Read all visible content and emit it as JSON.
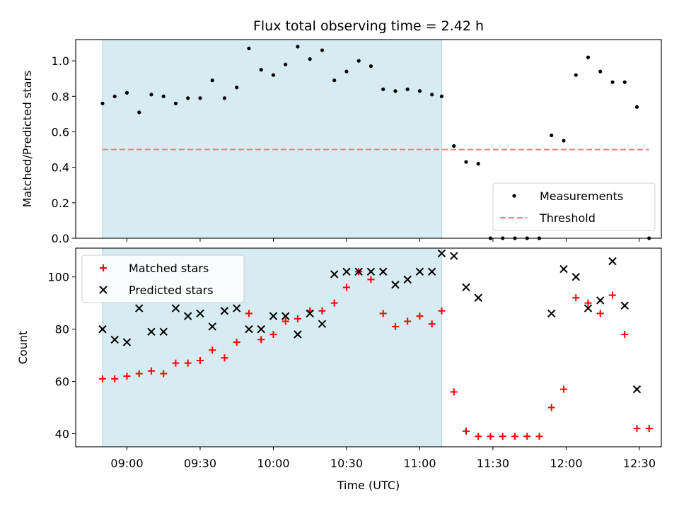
{
  "chart_data": {
    "type": "scatter",
    "title": "Flux total observing time = 2.42 h",
    "xlabel": "Time (UTC)",
    "x_ticks": [
      "09:00",
      "09:30",
      "10:00",
      "10:30",
      "11:00",
      "11:30",
      "12:00",
      "12:30"
    ],
    "x_range": [
      "08:39",
      "12:39"
    ],
    "shaded_interval": [
      "08:50",
      "11:09"
    ],
    "colors": {
      "shade": "#add8e6",
      "measurements": "#000000",
      "threshold": "#f08080",
      "matched": "#ff0000",
      "predicted": "#000000"
    },
    "panels": [
      {
        "ylabel": "Matched/Predicted stars",
        "ylim": [
          0,
          1.12
        ],
        "y_ticks": [
          0.0,
          0.2,
          0.4,
          0.6,
          0.8,
          1.0
        ],
        "y_tick_labels": [
          "0.0",
          "0.2",
          "0.4",
          "0.6",
          "0.8",
          "1.0"
        ],
        "legend": {
          "placement": "lower right",
          "entries": [
            "Measurements",
            "Threshold"
          ]
        },
        "series": [
          {
            "name": "Measurements",
            "marker": "dot",
            "points": [
              [
                "08:50",
                0.76
              ],
              [
                "08:55",
                0.8
              ],
              [
                "09:00",
                0.82
              ],
              [
                "09:05",
                0.71
              ],
              [
                "09:10",
                0.81
              ],
              [
                "09:15",
                0.8
              ],
              [
                "09:20",
                0.76
              ],
              [
                "09:25",
                0.79
              ],
              [
                "09:30",
                0.79
              ],
              [
                "09:35",
                0.89
              ],
              [
                "09:40",
                0.79
              ],
              [
                "09:45",
                0.85
              ],
              [
                "09:50",
                1.07
              ],
              [
                "09:55",
                0.95
              ],
              [
                "10:00",
                0.92
              ],
              [
                "10:05",
                0.98
              ],
              [
                "10:10",
                1.08
              ],
              [
                "10:15",
                1.01
              ],
              [
                "10:20",
                1.06
              ],
              [
                "10:25",
                0.89
              ],
              [
                "10:30",
                0.94
              ],
              [
                "10:35",
                1.0
              ],
              [
                "10:40",
                0.97
              ],
              [
                "10:45",
                0.84
              ],
              [
                "10:50",
                0.83
              ],
              [
                "10:55",
                0.84
              ],
              [
                "11:00",
                0.83
              ],
              [
                "11:05",
                0.81
              ],
              [
                "11:09",
                0.8
              ],
              [
                "11:14",
                0.52
              ],
              [
                "11:19",
                0.43
              ],
              [
                "11:24",
                0.42
              ],
              [
                "11:29",
                0.0
              ],
              [
                "11:34",
                0.0
              ],
              [
                "11:39",
                0.0
              ],
              [
                "11:44",
                0.0
              ],
              [
                "11:49",
                0.0
              ],
              [
                "11:54",
                0.58
              ],
              [
                "11:59",
                0.55
              ],
              [
                "12:04",
                0.92
              ],
              [
                "12:09",
                1.02
              ],
              [
                "12:14",
                0.94
              ],
              [
                "12:19",
                0.88
              ],
              [
                "12:24",
                0.88
              ],
              [
                "12:29",
                0.74
              ],
              [
                "12:34",
                0.0
              ]
            ]
          },
          {
            "name": "Threshold",
            "marker": "dashed-line",
            "points": [
              [
                "08:50",
                0.5
              ],
              [
                "12:34",
                0.5
              ]
            ]
          }
        ]
      },
      {
        "ylabel": "Count",
        "ylim": [
          35,
          111
        ],
        "y_ticks": [
          40,
          60,
          80,
          100
        ],
        "y_tick_labels": [
          "40",
          "60",
          "80",
          "100"
        ],
        "legend": {
          "placement": "upper left",
          "entries": [
            "Matched stars",
            "Predicted stars"
          ]
        },
        "series": [
          {
            "name": "Matched stars",
            "marker": "plus",
            "points": [
              [
                "08:50",
                61
              ],
              [
                "08:55",
                61
              ],
              [
                "09:00",
                62
              ],
              [
                "09:05",
                63
              ],
              [
                "09:10",
                64
              ],
              [
                "09:15",
                63
              ],
              [
                "09:20",
                67
              ],
              [
                "09:25",
                67
              ],
              [
                "09:30",
                68
              ],
              [
                "09:35",
                72
              ],
              [
                "09:40",
                69
              ],
              [
                "09:45",
                75
              ],
              [
                "09:50",
                86
              ],
              [
                "09:55",
                76
              ],
              [
                "10:00",
                78
              ],
              [
                "10:05",
                83
              ],
              [
                "10:10",
                84
              ],
              [
                "10:15",
                87
              ],
              [
                "10:20",
                87
              ],
              [
                "10:25",
                90
              ],
              [
                "10:30",
                96
              ],
              [
                "10:35",
                102
              ],
              [
                "10:40",
                99
              ],
              [
                "10:45",
                86
              ],
              [
                "10:50",
                81
              ],
              [
                "10:55",
                83
              ],
              [
                "11:00",
                85
              ],
              [
                "11:05",
                82
              ],
              [
                "11:09",
                87
              ],
              [
                "11:14",
                56
              ],
              [
                "11:19",
                41
              ],
              [
                "11:24",
                39
              ],
              [
                "11:29",
                39
              ],
              [
                "11:34",
                39
              ],
              [
                "11:39",
                39
              ],
              [
                "11:44",
                39
              ],
              [
                "11:49",
                39
              ],
              [
                "11:54",
                50
              ],
              [
                "11:59",
                57
              ],
              [
                "12:04",
                92
              ],
              [
                "12:09",
                90
              ],
              [
                "12:14",
                86
              ],
              [
                "12:19",
                93
              ],
              [
                "12:24",
                78
              ],
              [
                "12:29",
                42
              ],
              [
                "12:34",
                42
              ]
            ]
          },
          {
            "name": "Predicted stars",
            "marker": "x",
            "points": [
              [
                "08:50",
                80
              ],
              [
                "08:55",
                76
              ],
              [
                "09:00",
                75
              ],
              [
                "09:05",
                88
              ],
              [
                "09:10",
                79
              ],
              [
                "09:15",
                79
              ],
              [
                "09:20",
                88
              ],
              [
                "09:25",
                85
              ],
              [
                "09:30",
                86
              ],
              [
                "09:35",
                81
              ],
              [
                "09:40",
                87
              ],
              [
                "09:45",
                88
              ],
              [
                "09:50",
                80
              ],
              [
                "09:55",
                80
              ],
              [
                "10:00",
                85
              ],
              [
                "10:05",
                85
              ],
              [
                "10:10",
                78
              ],
              [
                "10:15",
                86
              ],
              [
                "10:20",
                82
              ],
              [
                "10:25",
                101
              ],
              [
                "10:30",
                102
              ],
              [
                "10:35",
                102
              ],
              [
                "10:40",
                102
              ],
              [
                "10:45",
                102
              ],
              [
                "10:50",
                97
              ],
              [
                "10:55",
                99
              ],
              [
                "11:00",
                102
              ],
              [
                "11:05",
                102
              ],
              [
                "11:09",
                109
              ],
              [
                "11:14",
                108
              ],
              [
                "11:19",
                96
              ],
              [
                "11:24",
                92
              ],
              [
                "11:54",
                86
              ],
              [
                "11:59",
                103
              ],
              [
                "12:04",
                100
              ],
              [
                "12:09",
                88
              ],
              [
                "12:14",
                91
              ],
              [
                "12:19",
                106
              ],
              [
                "12:24",
                89
              ],
              [
                "12:29",
                57
              ]
            ]
          }
        ]
      }
    ]
  }
}
